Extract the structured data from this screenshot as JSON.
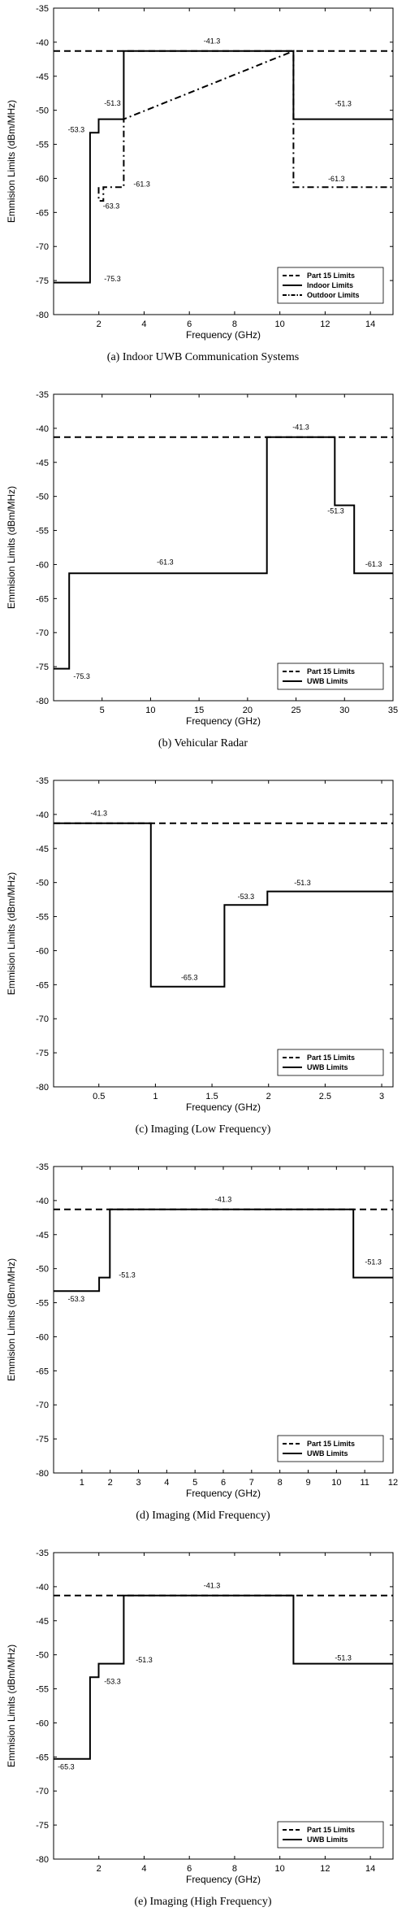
{
  "chart_data": [
    {
      "type": "line",
      "caption": "(a) Indoor UWB Communication Systems",
      "xlabel": "Frequency (GHz)",
      "ylabel": "Emmision Limits (dBm/MHz)",
      "xlim": [
        0,
        15
      ],
      "ylim": [
        -80,
        -35
      ],
      "xticks": [
        2,
        4,
        6,
        8,
        10,
        12,
        14
      ],
      "yticks": [
        -35,
        -40,
        -45,
        -50,
        -55,
        -60,
        -65,
        -70,
        -75,
        -80
      ],
      "legend_position": "lower-right",
      "series": [
        {
          "name": "Part 15 Limits",
          "style": "dashed",
          "x": [
            0,
            15
          ],
          "y": [
            -41.3,
            -41.3
          ]
        },
        {
          "name": "Indoor Limits",
          "style": "solid",
          "x": [
            0,
            1.61,
            1.61,
            1.99,
            1.99,
            3.1,
            3.1,
            10.6,
            10.6,
            15
          ],
          "y": [
            -75.3,
            -75.3,
            -53.3,
            -53.3,
            -51.3,
            -51.3,
            -41.3,
            -41.3,
            -51.3,
            -51.3
          ]
        },
        {
          "name": "Outdoor Limits",
          "style": "dashdot",
          "x": [
            1.99,
            1.99,
            2.2,
            2.2,
            3.1,
            3.1,
            10.6,
            10.6,
            15
          ],
          "y": [
            -61.3,
            -63.3,
            -63.3,
            -61.3,
            -61.3,
            -51.3,
            -41.3,
            -61.3,
            -61.3
          ]
        }
      ],
      "annotations": [
        {
          "text": "-41.3",
          "x": 7.0,
          "y": -40.2
        },
        {
          "text": "-51.3",
          "x": 2.6,
          "y": -49.3
        },
        {
          "text": "-53.3",
          "x": 1.0,
          "y": -53.2
        },
        {
          "text": "-51.3",
          "x": 12.8,
          "y": -49.4
        },
        {
          "text": "-61.3",
          "x": 3.9,
          "y": -61.2
        },
        {
          "text": "-63.3",
          "x": 2.55,
          "y": -64.4
        },
        {
          "text": "-61.3",
          "x": 12.5,
          "y": -60.4
        },
        {
          "text": "-75.3",
          "x": 2.6,
          "y": -75.1
        }
      ]
    },
    {
      "type": "line",
      "caption": "(b) Vehicular Radar",
      "xlabel": "Frequency (GHz)",
      "ylabel": "Emmision Limits (dBm/MHz)",
      "xlim": [
        0,
        35
      ],
      "ylim": [
        -80,
        -35
      ],
      "xticks": [
        5,
        10,
        15,
        20,
        25,
        30,
        35
      ],
      "yticks": [
        -35,
        -40,
        -45,
        -50,
        -55,
        -60,
        -65,
        -70,
        -75,
        -80
      ],
      "legend_position": "lower-right",
      "series": [
        {
          "name": "Part 15 Limits",
          "style": "dashed",
          "x": [
            0,
            35
          ],
          "y": [
            -41.3,
            -41.3
          ]
        },
        {
          "name": "UWB Limits",
          "style": "solid",
          "x": [
            0,
            1.61,
            1.61,
            22,
            22,
            29,
            29,
            31,
            31,
            35
          ],
          "y": [
            -75.3,
            -75.3,
            -61.3,
            -61.3,
            -41.3,
            -41.3,
            -51.3,
            -51.3,
            -61.3,
            -61.3
          ]
        }
      ],
      "annotations": [
        {
          "text": "-41.3",
          "x": 25.5,
          "y": -40.2
        },
        {
          "text": "-61.3",
          "x": 11.5,
          "y": -60.0
        },
        {
          "text": "-51.3",
          "x": 29.1,
          "y": -52.5
        },
        {
          "text": "-61.3",
          "x": 33.0,
          "y": -60.3
        },
        {
          "text": "-75.3",
          "x": 2.9,
          "y": -76.8
        }
      ]
    },
    {
      "type": "line",
      "caption": "(c) Imaging (Low Frequency)",
      "xlabel": "Frequency (GHz)",
      "ylabel": "Emmision Limits (dBm/MHz)",
      "xlim": [
        0.1,
        3.1
      ],
      "ylim": [
        -80,
        -35
      ],
      "xticks": [
        0.5,
        1,
        1.5,
        2,
        2.5,
        3
      ],
      "yticks": [
        -35,
        -40,
        -45,
        -50,
        -55,
        -60,
        -65,
        -70,
        -75,
        -80
      ],
      "legend_position": "lower-right",
      "series": [
        {
          "name": "Part 15 Limits",
          "style": "dashed",
          "x": [
            0.1,
            3.1
          ],
          "y": [
            -41.3,
            -41.3
          ]
        },
        {
          "name": "UWB Limits",
          "style": "solid",
          "x": [
            0.1,
            0.96,
            0.96,
            1.61,
            1.61,
            1.99,
            1.99,
            3.1
          ],
          "y": [
            -41.3,
            -41.3,
            -65.3,
            -65.3,
            -53.3,
            -53.3,
            -51.3,
            -51.3
          ]
        }
      ],
      "annotations": [
        {
          "text": "-41.3",
          "x": 0.5,
          "y": -40.2
        },
        {
          "text": "-65.3",
          "x": 1.3,
          "y": -64.3
        },
        {
          "text": "-53.3",
          "x": 1.8,
          "y": -52.4
        },
        {
          "text": "-51.3",
          "x": 2.3,
          "y": -50.4
        }
      ]
    },
    {
      "type": "line",
      "caption": "(d) Imaging (Mid Frequency)",
      "xlabel": "Frequency (GHz)",
      "ylabel": "Emmision Limits (dBm/MHz)",
      "xlim": [
        0,
        12
      ],
      "ylim": [
        -80,
        -35
      ],
      "xticks": [
        1,
        2,
        3,
        4,
        5,
        6,
        7,
        8,
        9,
        10,
        11,
        12
      ],
      "yticks": [
        -35,
        -40,
        -45,
        -50,
        -55,
        -60,
        -65,
        -70,
        -75,
        -80
      ],
      "legend_position": "lower-right",
      "series": [
        {
          "name": "Part 15 Limits",
          "style": "dashed",
          "x": [
            0,
            12
          ],
          "y": [
            -41.3,
            -41.3
          ]
        },
        {
          "name": "UWB Limits",
          "style": "solid",
          "x": [
            0,
            1.61,
            1.61,
            1.99,
            1.99,
            10.6,
            10.6,
            12
          ],
          "y": [
            -53.3,
            -53.3,
            -51.3,
            -51.3,
            -41.3,
            -41.3,
            -51.3,
            -51.3
          ]
        }
      ],
      "annotations": [
        {
          "text": "-41.3",
          "x": 6.0,
          "y": -40.2
        },
        {
          "text": "-51.3",
          "x": 2.6,
          "y": -51.3
        },
        {
          "text": "-53.3",
          "x": 0.8,
          "y": -54.8
        },
        {
          "text": "-51.3",
          "x": 11.3,
          "y": -49.4
        }
      ]
    },
    {
      "type": "line",
      "caption": "(e) Imaging (High Frequency)",
      "xlabel": "Frequency (GHz)",
      "ylabel": "Emmision Limits (dBm/MHz)",
      "xlim": [
        0,
        15
      ],
      "ylim": [
        -80,
        -35
      ],
      "xticks": [
        2,
        4,
        6,
        8,
        10,
        12,
        14
      ],
      "yticks": [
        -35,
        -40,
        -45,
        -50,
        -55,
        -60,
        -65,
        -70,
        -75,
        -80
      ],
      "legend_position": "lower-right",
      "series": [
        {
          "name": "Part 15 Limits",
          "style": "dashed",
          "x": [
            0,
            15
          ],
          "y": [
            -41.3,
            -41.3
          ]
        },
        {
          "name": "UWB Limits",
          "style": "solid",
          "x": [
            0,
            1.61,
            1.61,
            1.99,
            1.99,
            3.1,
            3.1,
            10.6,
            10.6,
            15
          ],
          "y": [
            -65.3,
            -65.3,
            -53.3,
            -53.3,
            -51.3,
            -51.3,
            -41.3,
            -41.3,
            -51.3,
            -51.3
          ]
        }
      ],
      "annotations": [
        {
          "text": "-41.3",
          "x": 7.0,
          "y": -40.2
        },
        {
          "text": "-51.3",
          "x": 4.0,
          "y": -51.1
        },
        {
          "text": "-53.3",
          "x": 2.6,
          "y": -54.3
        },
        {
          "text": "-51.3",
          "x": 12.8,
          "y": -50.8
        },
        {
          "text": "-65.3",
          "x": 0.55,
          "y": -66.8
        }
      ]
    }
  ]
}
